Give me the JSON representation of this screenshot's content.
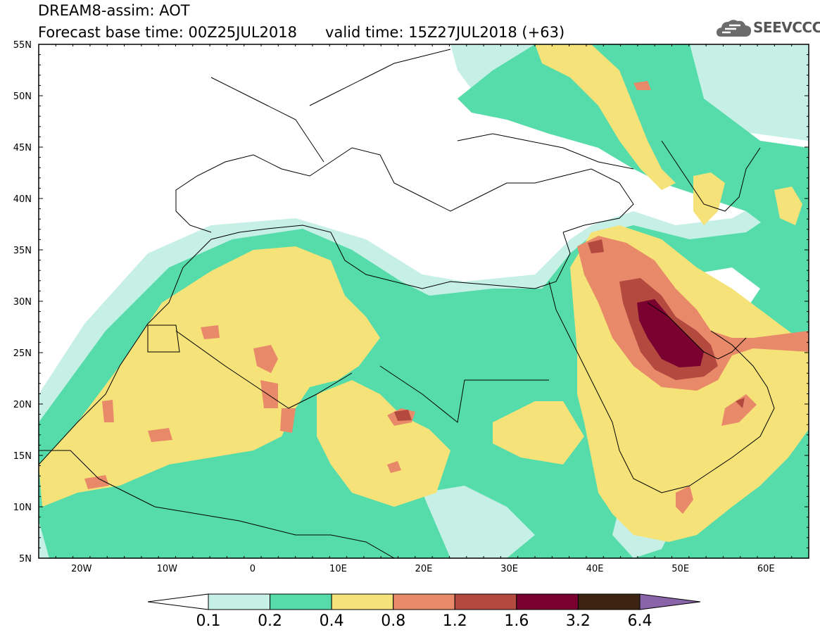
{
  "title": {
    "line1": "DREAM8-assim: AOT",
    "line2": "Forecast base time: 00Z25JUL2018      valid time: 15Z27JUL2018 (+63)"
  },
  "logo": {
    "text": "SEEVCCC",
    "icon": "cloud-icon"
  },
  "map": {
    "lon_labels": [
      "20W",
      "10W",
      "0",
      "10E",
      "20E",
      "30E",
      "40E",
      "50E",
      "60E"
    ],
    "lat_labels": [
      "55N",
      "50N",
      "45N",
      "40N",
      "35N",
      "30N",
      "25N",
      "20N",
      "15N",
      "10N",
      "5N"
    ],
    "lon_range": [
      -25,
      65
    ],
    "lat_range": [
      5,
      55
    ]
  },
  "legend": {
    "labels": [
      "0.1",
      "0.2",
      "0.4",
      "0.8",
      "1.2",
      "1.6",
      "3.2",
      "6.4"
    ],
    "colors": [
      "#ffffff",
      "#c6f0e6",
      "#55dcaa",
      "#f5e278",
      "#e88a6a",
      "#b4493f",
      "#7a0030",
      "#3c2312",
      "#8a64a8"
    ]
  }
}
